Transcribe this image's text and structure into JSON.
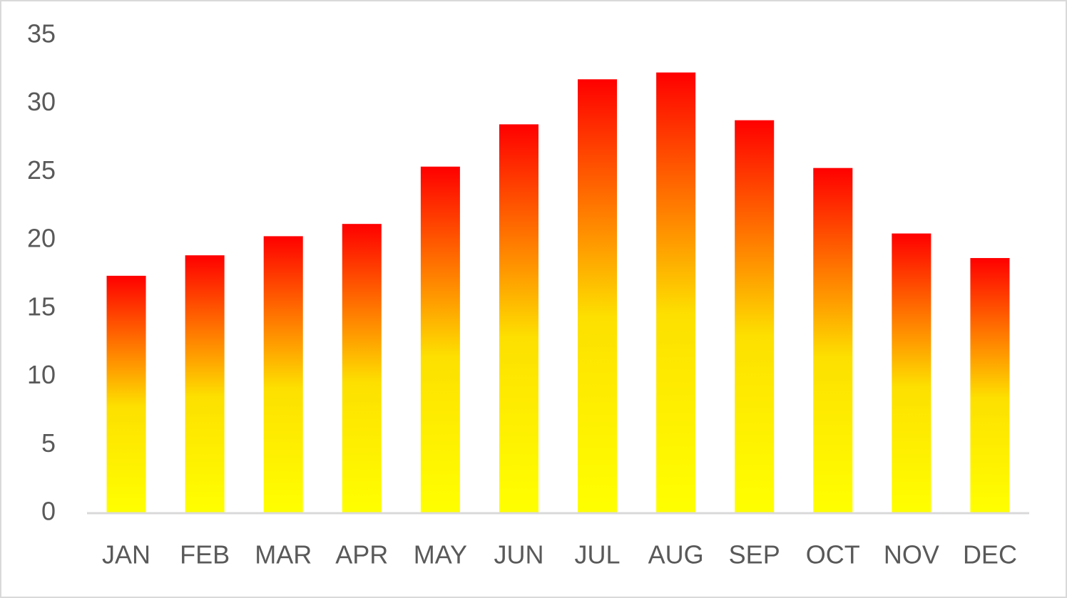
{
  "chart_data": {
    "type": "bar",
    "categories": [
      "JAN",
      "FEB",
      "MAR",
      "APR",
      "MAY",
      "JUN",
      "JUL",
      "AUG",
      "SEP",
      "OCT",
      "NOV",
      "DEC"
    ],
    "values": [
      17.4,
      18.9,
      20.3,
      21.2,
      25.4,
      28.5,
      31.8,
      32.3,
      28.8,
      25.3,
      20.5,
      18.7
    ],
    "gradient": [
      "#ffff00",
      "#fde000",
      "#ff9a00",
      "#ff0000"
    ],
    "ylim": [
      0,
      35
    ],
    "yticks": [
      0,
      5,
      10,
      15,
      20,
      25,
      30,
      35
    ],
    "grid": false
  }
}
